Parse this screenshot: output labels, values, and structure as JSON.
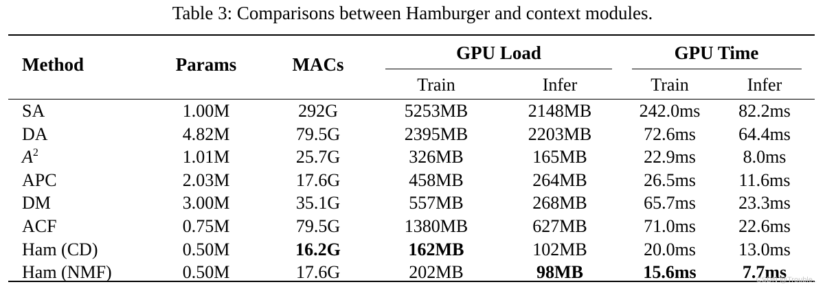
{
  "caption": "Table 3: Comparisons between Hamburger and context modules.",
  "headers": {
    "method": "Method",
    "params": "Params",
    "macs": "MACs",
    "gpu_load": "GPU Load",
    "gpu_time": "GPU Time",
    "train": "Train",
    "infer": "Infer"
  },
  "rows": [
    {
      "method": "SA",
      "params": "1.00M",
      "macs": "292G",
      "load_train": "5253MB",
      "load_infer": "2148MB",
      "time_train": "242.0ms",
      "time_infer": "82.2ms"
    },
    {
      "method": "DA",
      "params": "4.82M",
      "macs": "79.5G",
      "load_train": "2395MB",
      "load_infer": "2203MB",
      "time_train": "72.6ms",
      "time_infer": "64.4ms"
    },
    {
      "method": "A",
      "method_sup": "2",
      "params": "1.01M",
      "macs": "25.7G",
      "load_train": "326MB",
      "load_infer": "165MB",
      "time_train": "22.9ms",
      "time_infer": "8.0ms"
    },
    {
      "method": "APC",
      "params": "2.03M",
      "macs": "17.6G",
      "load_train": "458MB",
      "load_infer": "264MB",
      "time_train": "26.5ms",
      "time_infer": "11.6ms"
    },
    {
      "method": "DM",
      "params": "3.00M",
      "macs": "35.1G",
      "load_train": "557MB",
      "load_infer": "268MB",
      "time_train": "65.7ms",
      "time_infer": "23.3ms"
    },
    {
      "method": "ACF",
      "params": "0.75M",
      "macs": "79.5G",
      "load_train": "1380MB",
      "load_infer": "627MB",
      "time_train": "71.0ms",
      "time_infer": "22.6ms"
    },
    {
      "method": "Ham (CD)",
      "params": "0.50M",
      "macs": "16.2G",
      "load_train": "162MB",
      "load_infer": "102MB",
      "time_train": "20.0ms",
      "time_infer": "13.0ms"
    },
    {
      "method": "Ham (NMF)",
      "params": "0.50M",
      "macs": "17.6G",
      "load_train": "202MB",
      "load_infer": "98MB",
      "time_train": "15.6ms",
      "time_infer": "7.7ms"
    }
  ],
  "watermark": "CSDN @Trouble.."
}
